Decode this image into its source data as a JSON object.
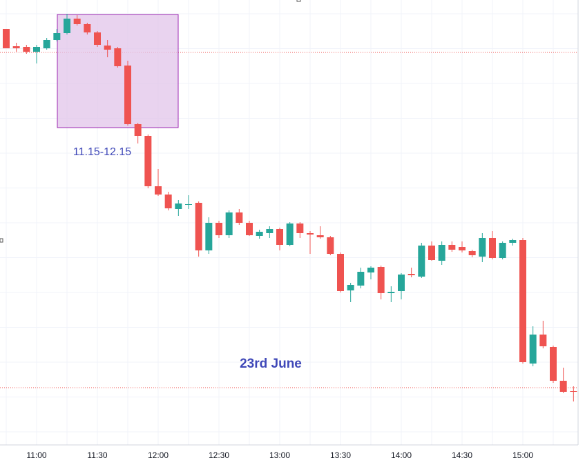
{
  "chart_data": {
    "type": "candlestick",
    "categories": [
      null,
      null,
      null,
      "11:00",
      null,
      null,
      null,
      null,
      null,
      "11:30",
      null,
      null,
      null,
      null,
      null,
      "12:00",
      null,
      null,
      null,
      null,
      null,
      "12:30",
      null,
      null,
      null,
      null,
      null,
      "13:00",
      null,
      null,
      null,
      null,
      null,
      "13:30",
      null,
      null,
      null,
      null,
      null,
      "14:00",
      null,
      null,
      null,
      null,
      null,
      "14:30",
      null,
      null,
      null,
      null,
      null,
      "15:00",
      null,
      null,
      null,
      null,
      null
    ],
    "open": [
      603,
      578,
      577,
      570,
      575,
      587,
      597,
      618,
      610,
      598,
      579,
      575,
      550,
      465,
      448,
      375,
      363,
      342,
      348,
      351,
      282,
      322,
      304,
      337,
      322,
      303,
      307,
      313,
      290,
      321,
      307,
      304,
      301,
      277,
      224,
      231,
      250,
      258,
      220,
      223,
      248,
      244,
      289,
      267,
      290,
      287,
      281,
      273,
      300,
      271,
      293,
      297,
      118,
      160,
      142,
      93,
      78
    ],
    "high": [
      603,
      583,
      580,
      580,
      590,
      603,
      625,
      623,
      612,
      600,
      587,
      577,
      557,
      467,
      450,
      400,
      367,
      355,
      362,
      353,
      330,
      325,
      340,
      342,
      325,
      312,
      317,
      315,
      323,
      323,
      310,
      317,
      303,
      279,
      235,
      257,
      259,
      260,
      230,
      249,
      257,
      293,
      295,
      295,
      295,
      295,
      283,
      307,
      310,
      295,
      299,
      300,
      172,
      180,
      144,
      112,
      85
    ],
    "low": [
      575,
      570,
      567,
      553,
      573,
      585,
      595,
      608,
      595,
      577,
      562,
      547,
      463,
      437,
      372,
      361,
      340,
      332,
      342,
      273,
      277,
      300,
      300,
      319,
      303,
      299,
      300,
      282,
      288,
      300,
      277,
      299,
      275,
      221,
      207,
      227,
      240,
      211,
      207,
      211,
      243,
      242,
      267,
      261,
      280,
      279,
      272,
      265,
      269,
      269,
      289,
      118,
      114,
      140,
      90,
      75,
      63
    ],
    "close": [
      575,
      575,
      570,
      577,
      587,
      597,
      618,
      610,
      598,
      580,
      573,
      549,
      465,
      448,
      375,
      363,
      343,
      350,
      349,
      282,
      322,
      304,
      337,
      322,
      304,
      309,
      313,
      290,
      321,
      307,
      305,
      301,
      277,
      223,
      232,
      251,
      257,
      220,
      222,
      247,
      246,
      289,
      268,
      290,
      283,
      282,
      275,
      300,
      271,
      293,
      297,
      120,
      160,
      143,
      93,
      77,
      77
    ],
    "up_color": "#26a69a",
    "down_color": "#ef5350",
    "ylim": [
      0,
      645
    ],
    "reference_lines": [
      {
        "value": 569,
        "color": "#ef5350"
      },
      {
        "value": 83,
        "color": "#ef5350"
      }
    ],
    "annotations": [
      "11.15-12.15",
      "23rd June"
    ],
    "grid": true
  }
}
